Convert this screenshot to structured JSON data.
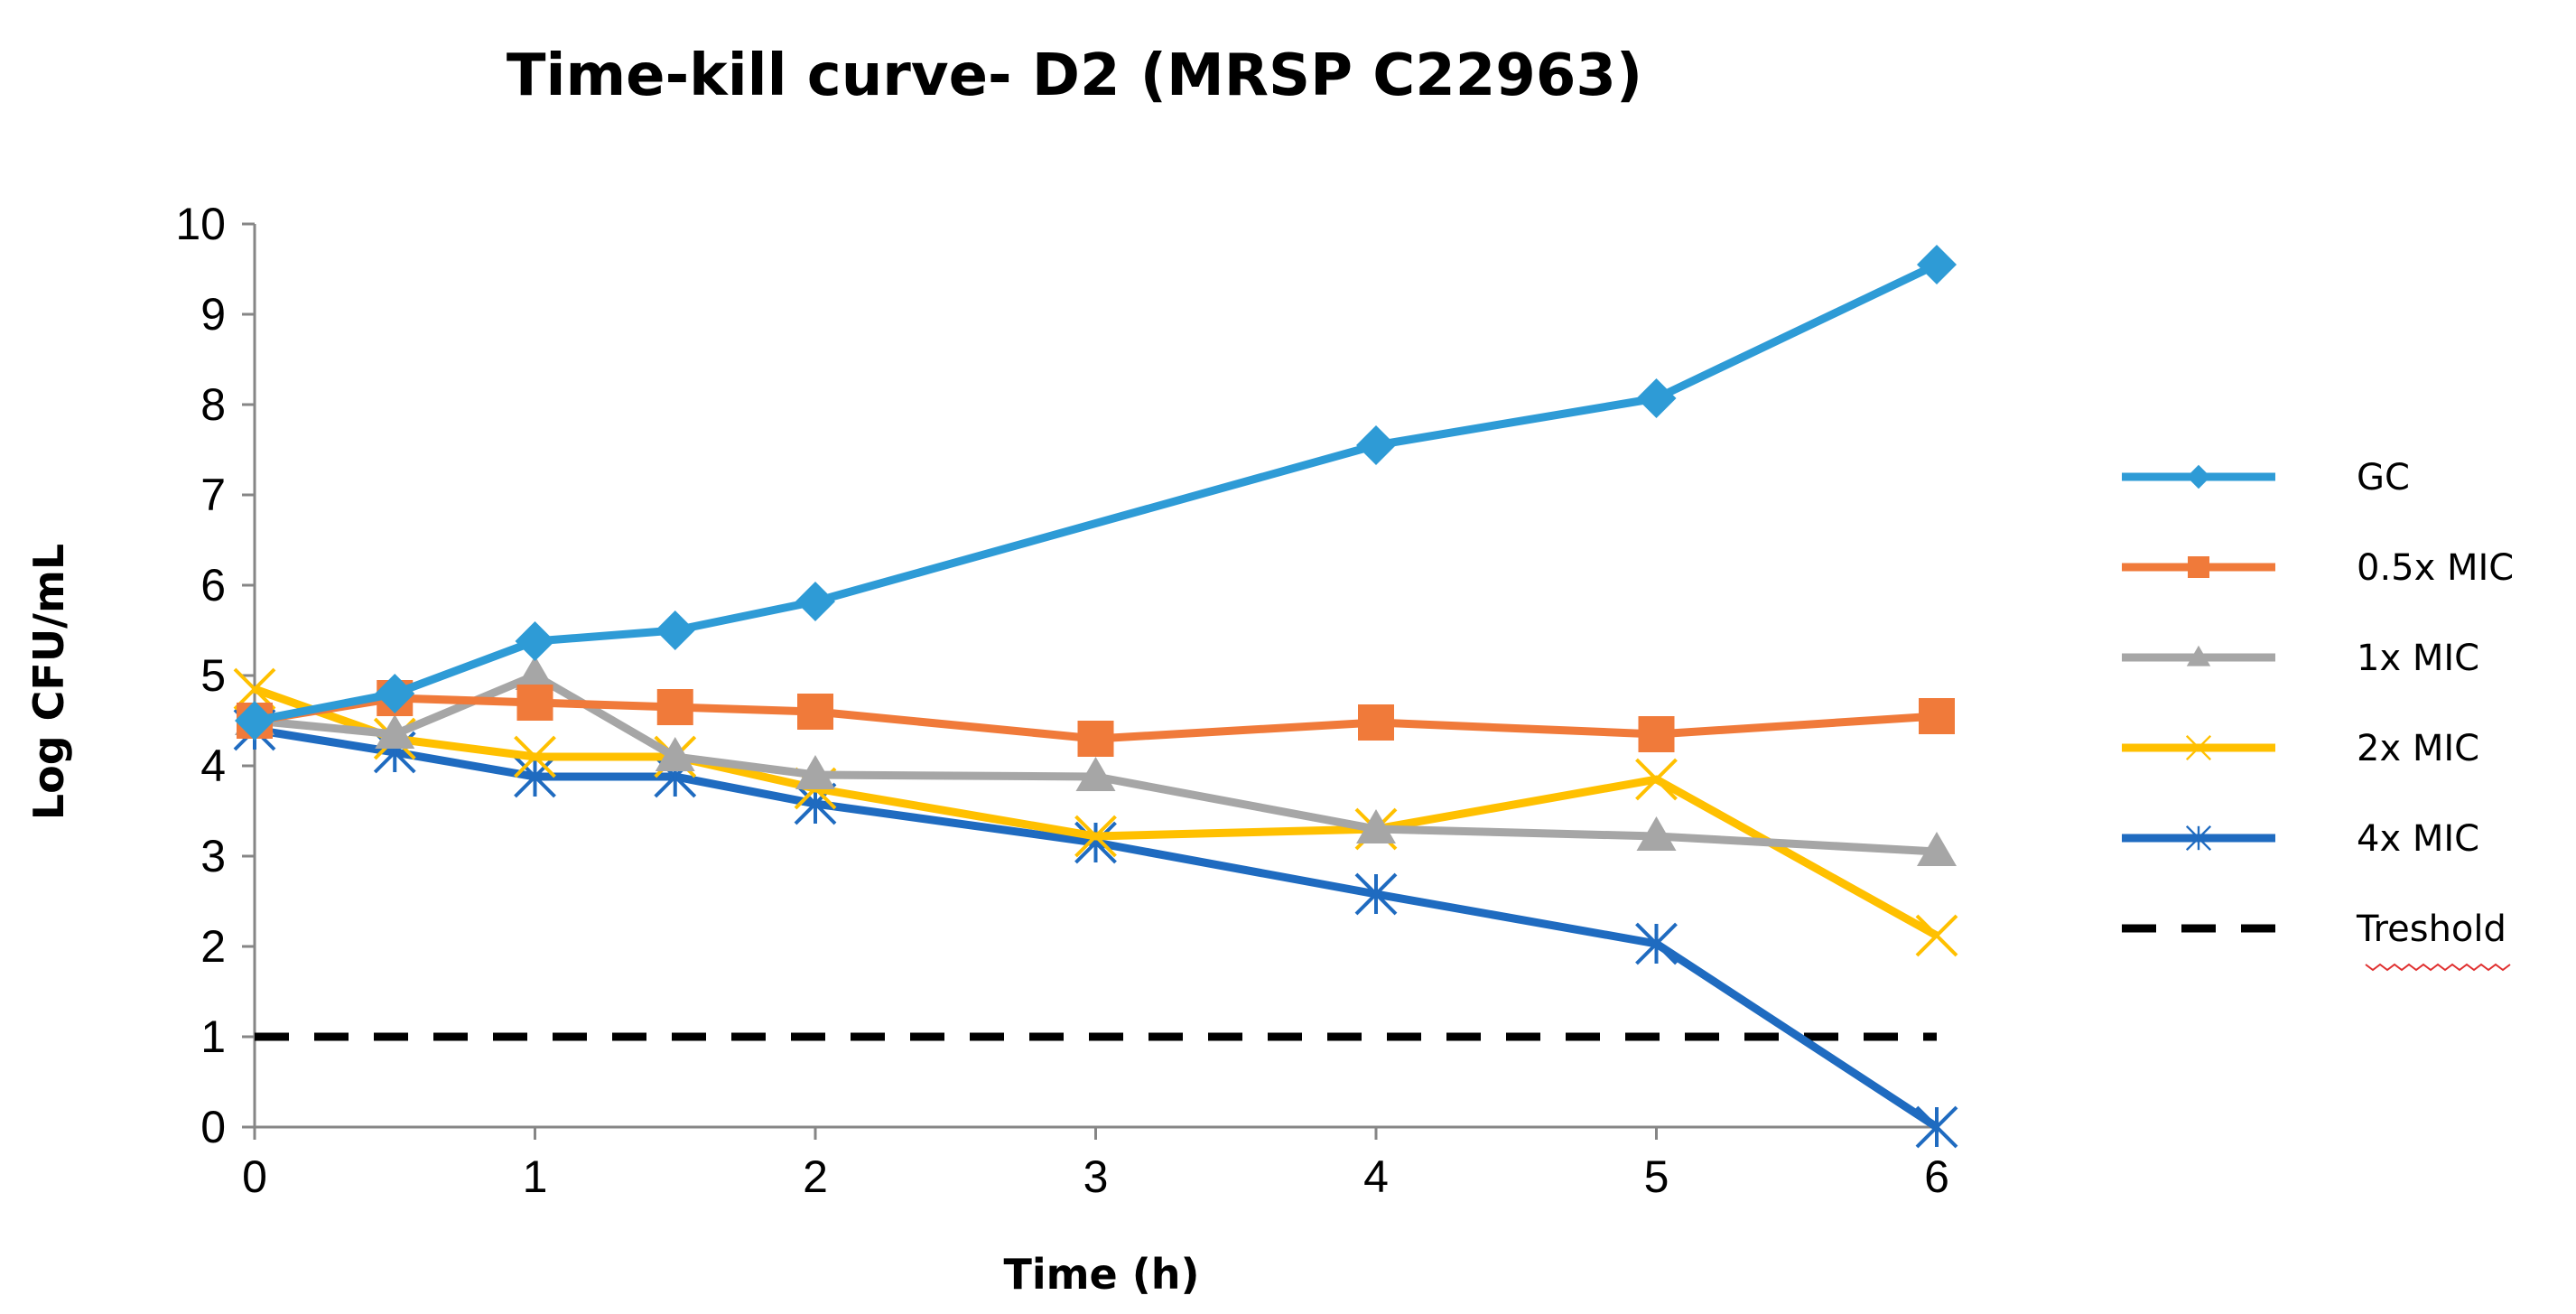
{
  "chart_data": {
    "type": "line",
    "title": "Time-kill curve- D2 (MRSP C22963)",
    "xlabel": "Time (h)",
    "ylabel": "Log CFU/mL",
    "xlim": [
      0,
      6
    ],
    "ylim": [
      0,
      10
    ],
    "x_ticks": [
      0,
      1,
      2,
      3,
      4,
      5,
      6
    ],
    "y_ticks": [
      0,
      1,
      2,
      3,
      4,
      5,
      6,
      7,
      8,
      9,
      10
    ],
    "grid": false,
    "legend_position": "right",
    "series": [
      {
        "name": "GC",
        "color": "#2E9BD6",
        "marker": "diamond",
        "style": "solid",
        "x": [
          0,
          0.5,
          1,
          1.5,
          2,
          4,
          5,
          6
        ],
        "y": [
          4.5,
          4.8,
          5.38,
          5.5,
          5.82,
          7.55,
          8.07,
          9.55
        ]
      },
      {
        "name": "0.5x MIC",
        "color": "#F07A3A",
        "marker": "square",
        "style": "solid",
        "x": [
          0,
          0.5,
          1,
          1.5,
          2,
          3,
          4,
          5,
          6
        ],
        "y": [
          4.5,
          4.75,
          4.7,
          4.65,
          4.6,
          4.3,
          4.48,
          4.35,
          4.55
        ]
      },
      {
        "name": "1x MIC",
        "color": "#A6A6A6",
        "marker": "triangle",
        "style": "solid",
        "x": [
          0,
          0.5,
          1,
          1.5,
          2,
          3,
          4,
          5,
          6
        ],
        "y": [
          4.5,
          4.35,
          5.0,
          4.1,
          3.9,
          3.88,
          3.3,
          3.22,
          3.05
        ]
      },
      {
        "name": "2x MIC",
        "color": "#FFC000",
        "marker": "x",
        "style": "solid",
        "x": [
          0,
          0.5,
          1,
          1.5,
          2,
          3,
          4,
          5,
          6
        ],
        "y": [
          4.85,
          4.3,
          4.1,
          4.1,
          3.75,
          3.22,
          3.3,
          3.85,
          2.12
        ]
      },
      {
        "name": "4x MIC",
        "color": "#1F6BC0",
        "marker": "star",
        "style": "solid",
        "x": [
          0,
          0.5,
          1,
          1.5,
          2,
          3,
          4,
          5,
          6
        ],
        "y": [
          4.4,
          4.15,
          3.88,
          3.88,
          3.58,
          3.15,
          2.58,
          2.03,
          0.0
        ]
      },
      {
        "name": "Treshold",
        "color": "#000000",
        "marker": "none",
        "style": "dashed",
        "x": [
          0,
          6
        ],
        "y": [
          1,
          1
        ]
      }
    ]
  }
}
